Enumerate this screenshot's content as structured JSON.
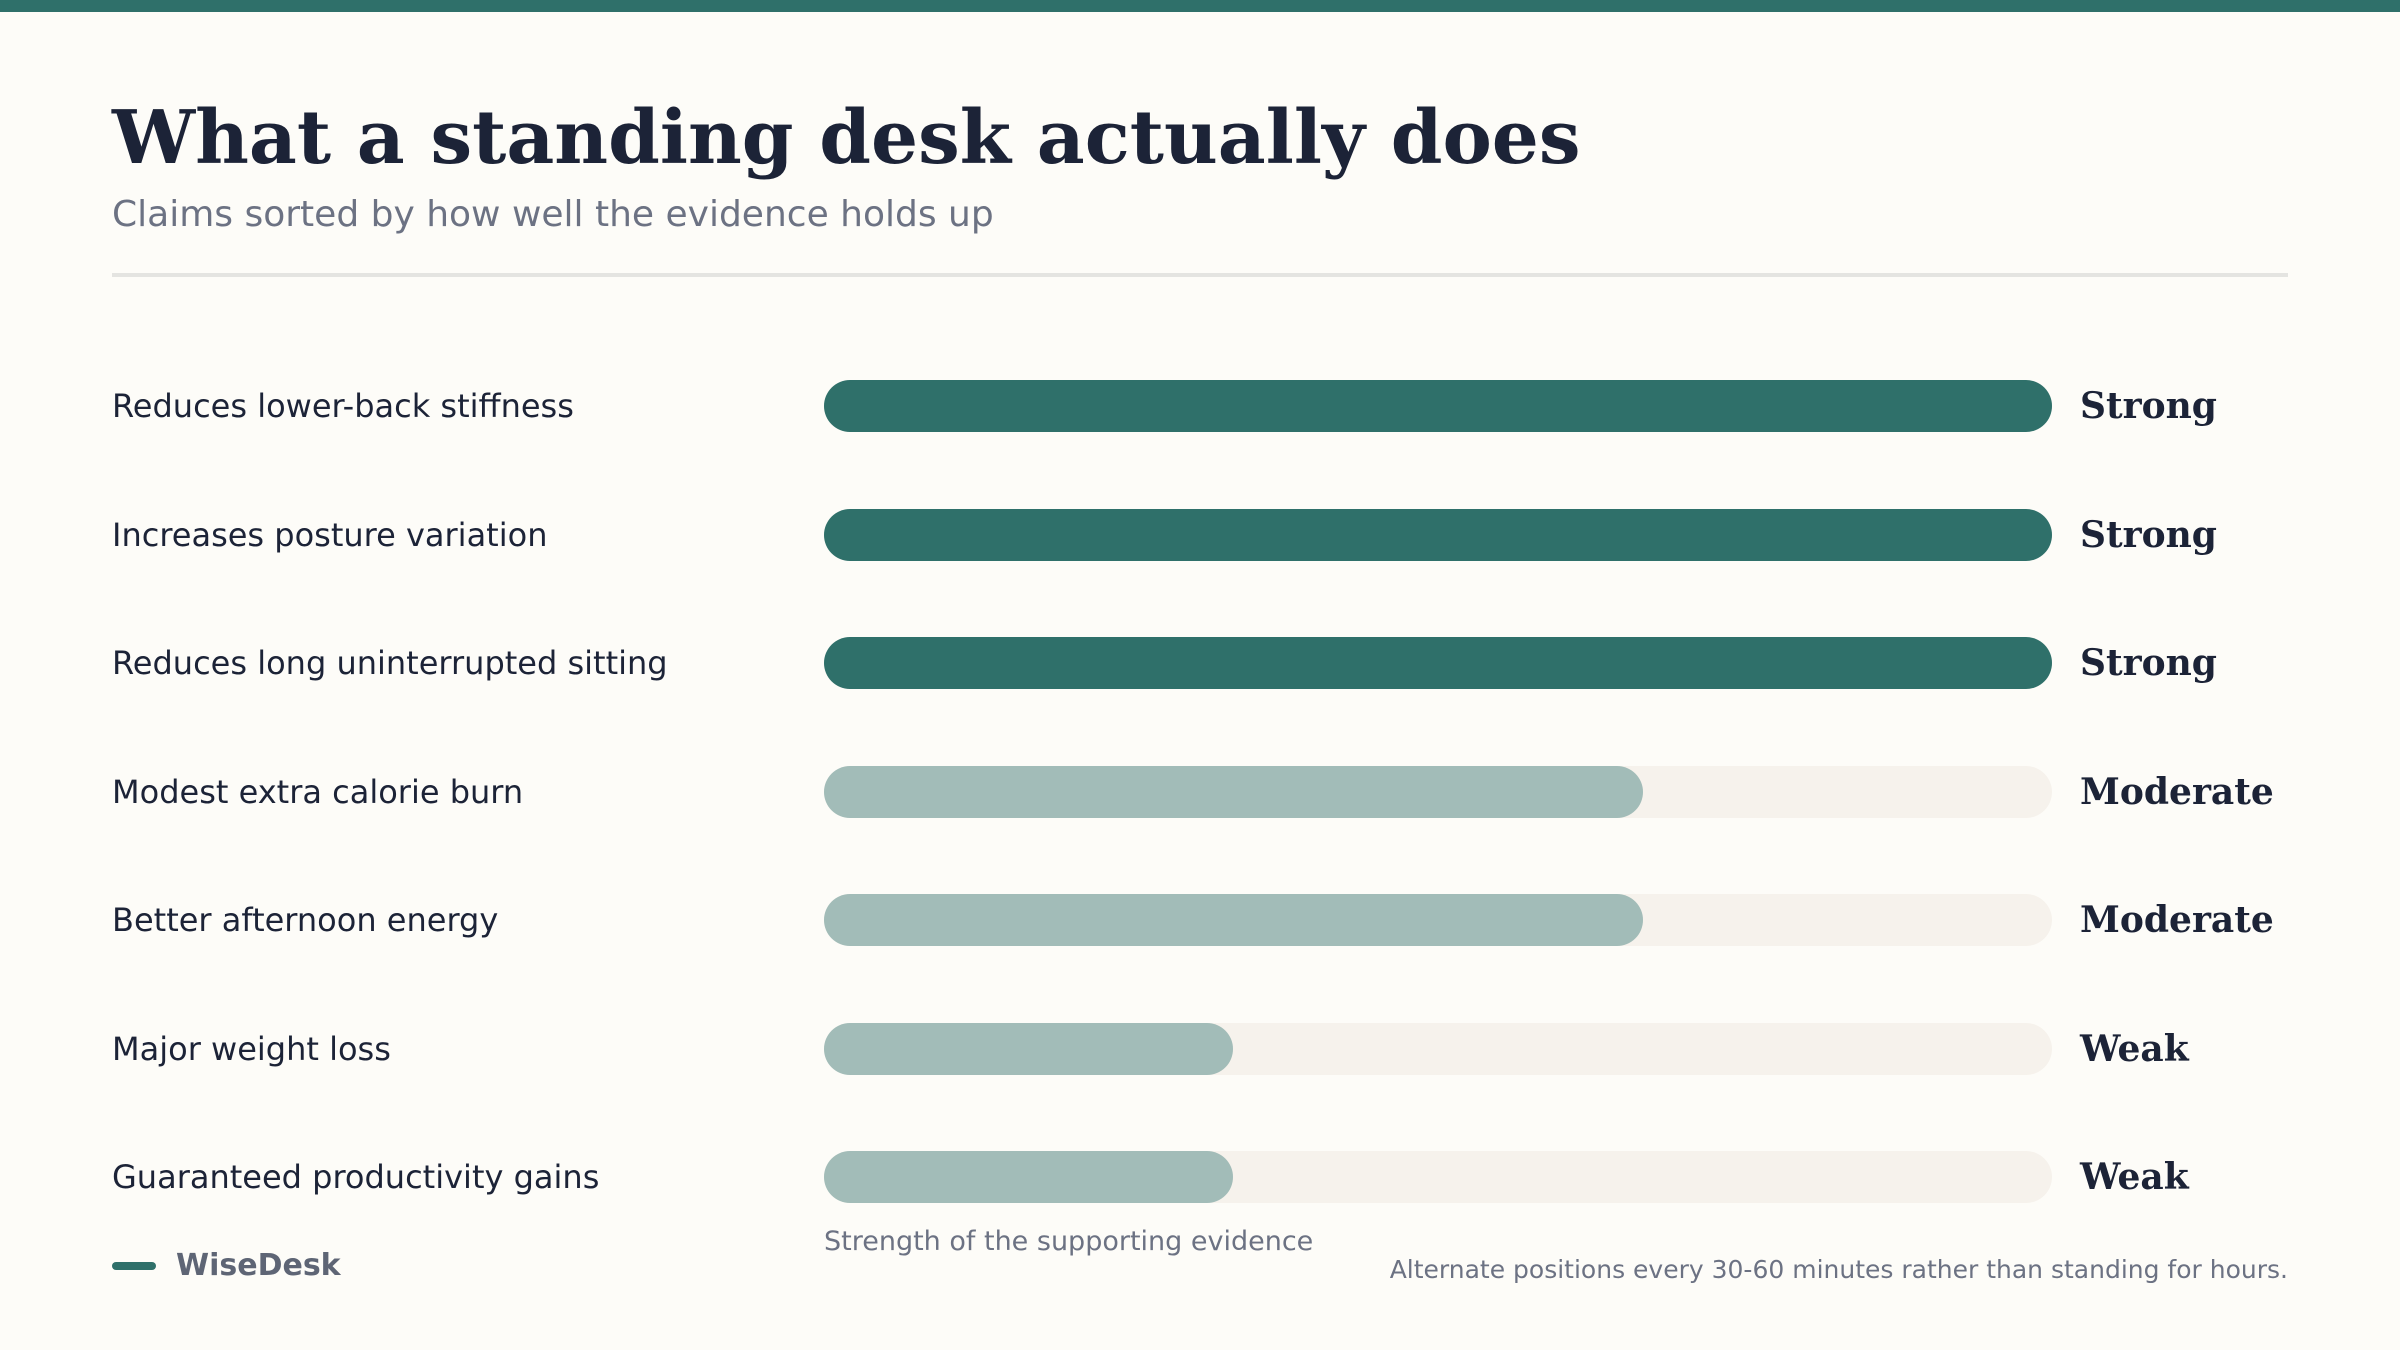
{
  "title": "What a standing desk actually does",
  "subtitle": "Claims sorted by how well the evidence holds up",
  "brand": {
    "name": "WiseDesk",
    "accent_color": "#2f706a"
  },
  "footnote": "Alternate positions every 30-60 minutes rather than standing for hours.",
  "axis_caption": "Strength of the supporting evidence",
  "colors": {
    "strong": "#2f706a",
    "other": "#a2bcb8",
    "track": "#f6f2ec",
    "text": "#1c2337",
    "muted": "#6c7283"
  },
  "chart_data": {
    "type": "bar",
    "orientation": "horizontal",
    "xlabel": "Strength of the supporting evidence",
    "xlim": [
      0,
      1
    ],
    "categories": [
      "Reduces lower-back stiffness",
      "Increases posture variation",
      "Reduces long uninterrupted sitting",
      "Modest extra calorie burn",
      "Better afternoon energy",
      "Major weight loss",
      "Guaranteed productivity gains"
    ],
    "values": [
      1.0,
      1.0,
      1.0,
      0.667,
      0.667,
      0.333,
      0.333
    ],
    "ratings": [
      "Strong",
      "Strong",
      "Strong",
      "Moderate",
      "Moderate",
      "Weak",
      "Weak"
    ]
  }
}
